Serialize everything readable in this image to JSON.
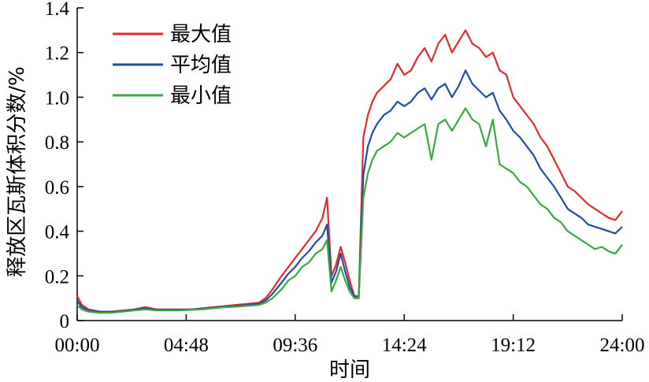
{
  "chart_data": {
    "type": "line",
    "title": "",
    "xlabel": "时间",
    "ylabel": "释放区瓦斯体积分数/%",
    "xlim": [
      0,
      24
    ],
    "ylim": [
      0,
      1.4
    ],
    "x_ticks": [
      0,
      4.8,
      9.6,
      14.4,
      19.2,
      24
    ],
    "x_tick_labels": [
      "00:00",
      "04:48",
      "09:36",
      "14:24",
      "19:12",
      "24:00"
    ],
    "y_ticks": [
      0,
      0.2,
      0.4,
      0.6,
      0.8,
      1.0,
      1.2,
      1.4
    ],
    "y_tick_labels": [
      "0",
      "0.2",
      "0.4",
      "0.6",
      "0.8",
      "1.0",
      "1.2",
      "1.4"
    ],
    "grid": false,
    "legend_position": "top-left",
    "x": [
      0,
      0.2,
      0.5,
      1,
      1.5,
      2,
      2.5,
      3,
      3.5,
      4,
      4.5,
      5,
      5.5,
      6,
      6.5,
      7,
      7.5,
      8,
      8.3,
      8.6,
      9,
      9.3,
      9.6,
      9.9,
      10.2,
      10.5,
      10.8,
      11.0,
      11.2,
      11.4,
      11.6,
      11.8,
      12.0,
      12.2,
      12.4,
      12.6,
      12.8,
      13.0,
      13.2,
      13.5,
      13.8,
      14.1,
      14.4,
      14.7,
      15.0,
      15.3,
      15.6,
      15.9,
      16.2,
      16.5,
      16.8,
      17.1,
      17.4,
      17.7,
      18.0,
      18.3,
      18.6,
      18.9,
      19.2,
      19.5,
      19.8,
      20.1,
      20.4,
      20.7,
      21.0,
      21.3,
      21.6,
      21.9,
      22.2,
      22.5,
      22.8,
      23.1,
      23.4,
      23.7,
      24.0
    ],
    "series": [
      {
        "name": "最大值",
        "color": "#e8292b",
        "values": [
          0.11,
          0.07,
          0.05,
          0.04,
          0.04,
          0.045,
          0.05,
          0.06,
          0.05,
          0.05,
          0.05,
          0.05,
          0.055,
          0.06,
          0.065,
          0.07,
          0.075,
          0.08,
          0.1,
          0.14,
          0.2,
          0.24,
          0.28,
          0.32,
          0.36,
          0.4,
          0.46,
          0.55,
          0.2,
          0.25,
          0.33,
          0.26,
          0.18,
          0.11,
          0.11,
          0.82,
          0.92,
          0.98,
          1.02,
          1.05,
          1.08,
          1.15,
          1.1,
          1.12,
          1.18,
          1.22,
          1.16,
          1.24,
          1.28,
          1.2,
          1.25,
          1.3,
          1.24,
          1.22,
          1.18,
          1.2,
          1.12,
          1.1,
          1.0,
          0.96,
          0.92,
          0.88,
          0.82,
          0.78,
          0.72,
          0.66,
          0.6,
          0.58,
          0.55,
          0.52,
          0.5,
          0.48,
          0.46,
          0.45,
          0.49
        ]
      },
      {
        "name": "平均值",
        "color": "#1f4ea1",
        "values": [
          0.09,
          0.06,
          0.045,
          0.04,
          0.04,
          0.042,
          0.048,
          0.055,
          0.048,
          0.048,
          0.048,
          0.05,
          0.052,
          0.058,
          0.062,
          0.066,
          0.07,
          0.075,
          0.09,
          0.12,
          0.17,
          0.21,
          0.24,
          0.28,
          0.31,
          0.35,
          0.38,
          0.43,
          0.17,
          0.22,
          0.3,
          0.22,
          0.15,
          0.11,
          0.1,
          0.65,
          0.78,
          0.84,
          0.88,
          0.92,
          0.94,
          0.98,
          0.96,
          0.98,
          1.02,
          1.04,
          0.99,
          1.04,
          1.06,
          1.0,
          1.05,
          1.12,
          1.06,
          1.03,
          1.0,
          1.02,
          0.94,
          0.9,
          0.85,
          0.82,
          0.78,
          0.74,
          0.68,
          0.64,
          0.6,
          0.55,
          0.5,
          0.48,
          0.46,
          0.43,
          0.42,
          0.41,
          0.4,
          0.39,
          0.42
        ]
      },
      {
        "name": "最小值",
        "color": "#3aa843",
        "values": [
          0.07,
          0.05,
          0.04,
          0.035,
          0.035,
          0.04,
          0.045,
          0.05,
          0.045,
          0.045,
          0.045,
          0.048,
          0.05,
          0.055,
          0.06,
          0.062,
          0.066,
          0.07,
          0.08,
          0.1,
          0.14,
          0.18,
          0.2,
          0.24,
          0.26,
          0.3,
          0.32,
          0.36,
          0.13,
          0.18,
          0.24,
          0.18,
          0.13,
          0.1,
          0.1,
          0.55,
          0.66,
          0.72,
          0.76,
          0.78,
          0.8,
          0.84,
          0.82,
          0.84,
          0.86,
          0.88,
          0.72,
          0.88,
          0.9,
          0.85,
          0.9,
          0.95,
          0.9,
          0.88,
          0.78,
          0.9,
          0.7,
          0.68,
          0.66,
          0.62,
          0.6,
          0.56,
          0.52,
          0.5,
          0.46,
          0.44,
          0.4,
          0.38,
          0.36,
          0.34,
          0.32,
          0.33,
          0.31,
          0.3,
          0.34
        ]
      }
    ]
  }
}
